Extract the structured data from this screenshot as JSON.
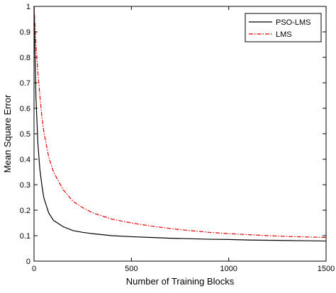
{
  "chart_data": {
    "type": "line",
    "title": "",
    "xlabel": "Number of Training Blocks",
    "ylabel": "Mean Square Error",
    "xlim": [
      0,
      1500
    ],
    "ylim": [
      0,
      1
    ],
    "xticks": [
      0,
      500,
      1000,
      1500
    ],
    "yticks": [
      0,
      0.1,
      0.2,
      0.3,
      0.4,
      0.5,
      0.6,
      0.7,
      0.8,
      0.9,
      1
    ],
    "xtick_labels": [
      "0",
      "500",
      "1000",
      "1500"
    ],
    "ytick_labels": [
      "0",
      "0.1",
      "0.2",
      "0.3",
      "0.4",
      "0.5",
      "0.6",
      "0.7",
      "0.8",
      "0.9",
      "1"
    ],
    "grid": false,
    "legend_position": "top-right",
    "series": [
      {
        "name": "PSO-LMS",
        "color": "#000000",
        "style": "solid",
        "x": [
          0,
          5,
          10,
          20,
          30,
          40,
          50,
          75,
          100,
          150,
          200,
          250,
          300,
          400,
          500,
          600,
          700,
          800,
          900,
          1000,
          1100,
          1200,
          1300,
          1400,
          1500
        ],
        "y": [
          1.0,
          0.82,
          0.64,
          0.46,
          0.36,
          0.3,
          0.25,
          0.19,
          0.16,
          0.135,
          0.12,
          0.113,
          0.108,
          0.1,
          0.096,
          0.093,
          0.09,
          0.088,
          0.086,
          0.085,
          0.083,
          0.082,
          0.081,
          0.08,
          0.079
        ]
      },
      {
        "name": "LMS",
        "color": "#e00000",
        "style": "dash-dot",
        "x": [
          0,
          5,
          10,
          20,
          30,
          40,
          50,
          75,
          100,
          150,
          200,
          250,
          300,
          400,
          500,
          600,
          700,
          800,
          900,
          1000,
          1100,
          1200,
          1300,
          1400,
          1500
        ],
        "y": [
          1.0,
          0.93,
          0.85,
          0.74,
          0.65,
          0.57,
          0.51,
          0.41,
          0.35,
          0.28,
          0.235,
          0.21,
          0.19,
          0.165,
          0.15,
          0.138,
          0.128,
          0.12,
          0.113,
          0.108,
          0.104,
          0.1,
          0.097,
          0.095,
          0.093
        ]
      }
    ]
  }
}
